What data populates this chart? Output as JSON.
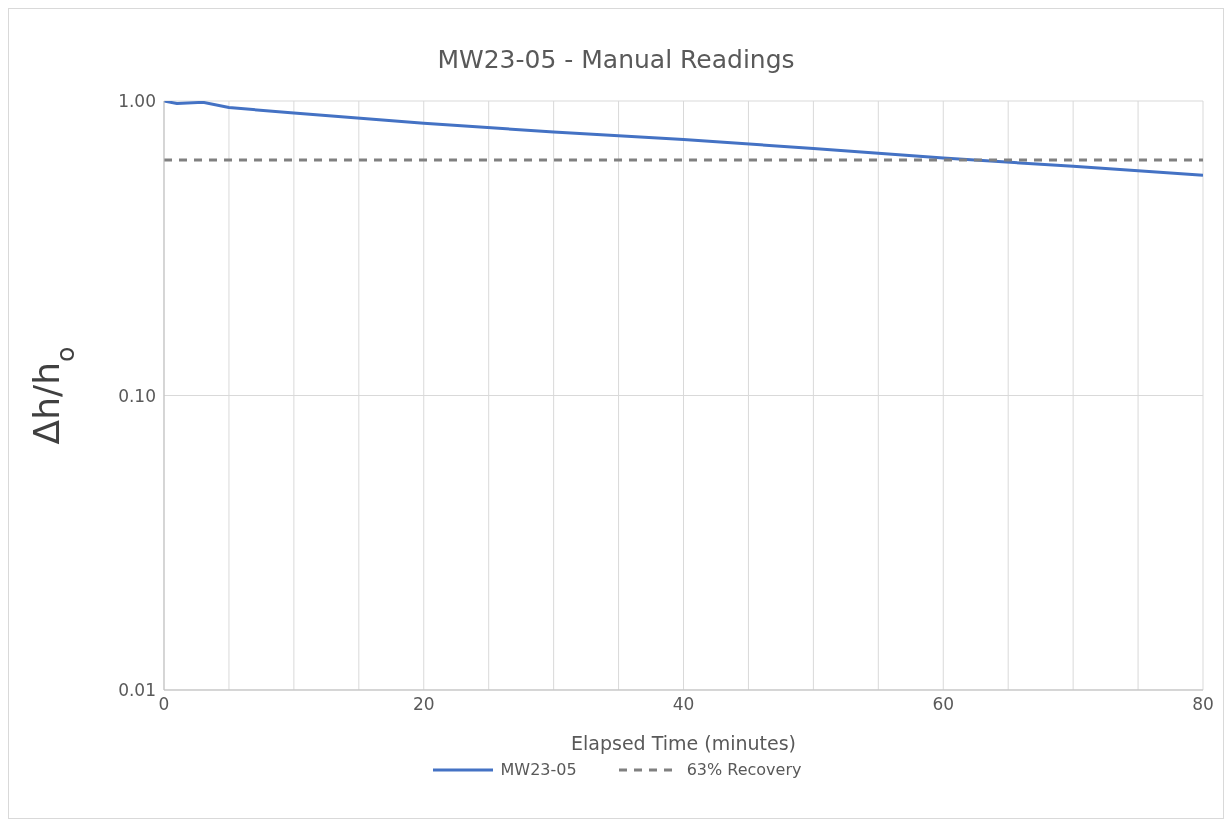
{
  "chart_data": {
    "type": "line",
    "title": "MW23-05 - Manual Readings",
    "xlabel": "Elapsed Time (minutes)",
    "ylabel": "Δh/h$_{o}$",
    "log": "y",
    "grid": true,
    "legend": "bottom",
    "marker": "none",
    "xlim": [
      0,
      80
    ],
    "xticks": [
      0,
      {
        "value": 5,
        "label": null
      },
      {
        "value": 10,
        "label": null
      },
      {
        "value": 15,
        "label": null
      },
      20,
      {
        "value": 25,
        "label": null
      },
      {
        "value": 30,
        "label": null
      },
      {
        "value": 35,
        "label": null
      },
      40,
      {
        "value": 45,
        "label": null
      },
      {
        "value": 50,
        "label": null
      },
      {
        "value": 55,
        "label": null
      },
      60,
      {
        "value": 65,
        "label": null
      },
      {
        "value": 70,
        "label": null
      },
      {
        "value": 75,
        "label": null
      },
      80
    ],
    "ylim": [
      0.01,
      1
    ],
    "yticks": [
      {
        "value": 0.01,
        "label": "0.01"
      },
      {
        "value": 0.1,
        "label": "0.10"
      },
      {
        "value": 1,
        "label": "1.00"
      }
    ],
    "series": [
      {
        "name": "MW23-05",
        "color": "#4472c4",
        "line_style": "solid",
        "x": [
          0,
          1,
          3,
          5,
          10,
          20,
          30,
          40,
          50,
          60,
          70,
          80
        ],
        "values": [
          1.0,
          0.98,
          0.99,
          0.95,
          0.91,
          0.84,
          0.785,
          0.74,
          0.69,
          0.64,
          0.6,
          0.56
        ]
      },
      {
        "name": "63% Recovery",
        "color": "#808080",
        "line_style": "dashed",
        "x": [
          0,
          80
        ],
        "values": [
          0.63,
          0.63
        ]
      }
    ]
  }
}
